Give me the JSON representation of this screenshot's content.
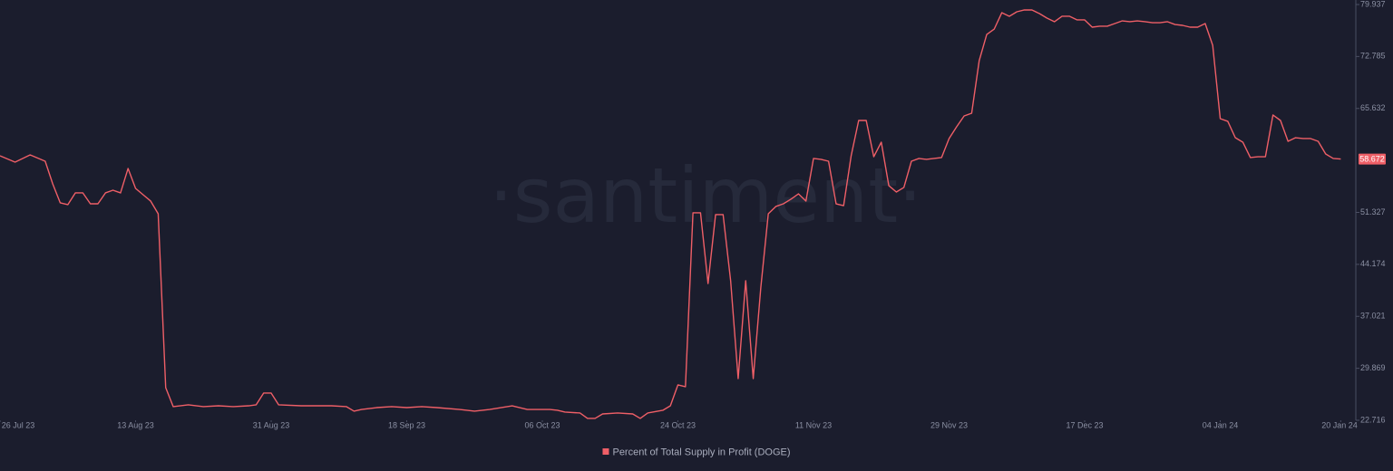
{
  "chart_data": {
    "type": "line",
    "watermark": "·santiment·",
    "x": [
      "2023-07-26",
      "2023-07-28",
      "2023-07-30",
      "2023-08-01",
      "2023-08-02",
      "2023-08-03",
      "2023-08-04",
      "2023-08-05",
      "2023-08-06",
      "2023-08-07",
      "2023-08-08",
      "2023-08-09",
      "2023-08-10",
      "2023-08-11",
      "2023-08-12",
      "2023-08-13",
      "2023-08-14",
      "2023-08-15",
      "2023-08-16",
      "2023-08-17",
      "2023-08-18",
      "2023-08-20",
      "2023-08-22",
      "2023-08-24",
      "2023-08-26",
      "2023-08-28",
      "2023-08-29",
      "2023-08-30",
      "2023-08-31",
      "2023-09-01",
      "2023-09-04",
      "2023-09-08",
      "2023-09-10",
      "2023-09-11",
      "2023-09-12",
      "2023-09-14",
      "2023-09-16",
      "2023-09-18",
      "2023-09-20",
      "2023-09-22",
      "2023-09-25",
      "2023-09-27",
      "2023-09-29",
      "2023-10-02",
      "2023-10-04",
      "2023-10-07",
      "2023-10-08",
      "2023-10-09",
      "2023-10-11",
      "2023-10-12",
      "2023-10-13",
      "2023-10-14",
      "2023-10-16",
      "2023-10-18",
      "2023-10-19",
      "2023-10-20",
      "2023-10-22",
      "2023-10-23",
      "2023-10-24",
      "2023-10-25",
      "2023-10-26",
      "2023-10-27",
      "2023-10-28",
      "2023-10-29",
      "2023-10-30",
      "2023-10-31",
      "2023-11-01",
      "2023-11-02",
      "2023-11-03",
      "2023-11-04",
      "2023-11-05",
      "2023-11-06",
      "2023-11-07",
      "2023-11-08",
      "2023-11-09",
      "2023-11-10",
      "2023-11-11",
      "2023-11-12",
      "2023-11-13",
      "2023-11-14",
      "2023-11-15",
      "2023-11-16",
      "2023-11-17",
      "2023-11-18",
      "2023-11-19",
      "2023-11-20",
      "2023-11-21",
      "2023-11-22",
      "2023-11-23",
      "2023-11-24",
      "2023-11-25",
      "2023-11-26",
      "2023-11-27",
      "2023-11-28",
      "2023-11-29",
      "2023-11-30",
      "2023-12-01",
      "2023-12-02",
      "2023-12-03",
      "2023-12-04",
      "2023-12-05",
      "2023-12-06",
      "2023-12-07",
      "2023-12-08",
      "2023-12-09",
      "2023-12-10",
      "2023-12-11",
      "2023-12-12",
      "2023-12-13",
      "2023-12-14",
      "2023-12-15",
      "2023-12-16",
      "2023-12-17",
      "2023-12-18",
      "2023-12-19",
      "2023-12-20",
      "2023-12-21",
      "2023-12-22",
      "2023-12-23",
      "2023-12-24",
      "2023-12-25",
      "2023-12-26",
      "2023-12-27",
      "2023-12-28",
      "2023-12-29",
      "2023-12-30",
      "2023-12-31",
      "2024-01-01",
      "2024-01-02",
      "2024-01-03",
      "2024-01-04",
      "2024-01-05",
      "2024-01-06",
      "2024-01-07",
      "2024-01-08",
      "2024-01-09",
      "2024-01-10",
      "2024-01-11",
      "2024-01-12",
      "2024-01-13",
      "2024-01-14",
      "2024-01-15",
      "2024-01-16",
      "2024-01-17",
      "2024-01-18",
      "2024-01-19",
      "2024-01-20"
    ],
    "series": [
      {
        "name": "Percent of Total Supply in Profit (DOGE)",
        "color": "#ef5f67",
        "values": [
          59.12,
          58.25,
          59.24,
          58.37,
          55.25,
          52.64,
          52.39,
          54.01,
          54.01,
          52.51,
          52.51,
          54.01,
          54.38,
          54.01,
          57.37,
          54.63,
          53.76,
          52.89,
          51.14,
          27.21,
          24.59,
          24.84,
          24.59,
          24.71,
          24.59,
          24.71,
          24.84,
          26.46,
          26.46,
          24.84,
          24.71,
          24.71,
          24.59,
          23.97,
          24.21,
          24.46,
          24.59,
          24.46,
          24.59,
          24.46,
          24.21,
          23.97,
          24.21,
          24.71,
          24.21,
          24.21,
          24.09,
          23.84,
          23.72,
          22.97,
          22.97,
          23.59,
          23.72,
          23.59,
          22.97,
          23.72,
          24.09,
          24.71,
          27.58,
          27.33,
          51.27,
          51.27,
          41.54,
          51.02,
          51.02,
          41.92,
          28.45,
          41.92,
          28.45,
          40.92,
          51.14,
          52.14,
          52.51,
          53.14,
          53.88,
          52.89,
          58.75,
          58.62,
          58.37,
          52.51,
          52.26,
          59.12,
          63.98,
          63.98,
          58.99,
          60.99,
          55.01,
          54.13,
          54.76,
          58.37,
          58.75,
          58.62,
          58.75,
          58.87,
          61.49,
          63.11,
          64.6,
          64.98,
          72.21,
          75.82,
          76.57,
          78.81,
          78.32,
          78.94,
          79.19,
          79.19,
          78.69,
          78.07,
          77.57,
          78.32,
          78.32,
          77.82,
          77.82,
          76.82,
          76.95,
          76.95,
          77.32,
          77.69,
          77.57,
          77.69,
          77.57,
          77.44,
          77.44,
          77.57,
          77.19,
          77.07,
          76.82,
          76.82,
          77.32,
          74.33,
          64.23,
          63.86,
          61.61,
          60.99,
          58.87,
          58.99,
          58.99,
          64.73,
          63.98,
          61.11,
          61.61,
          61.49,
          61.49,
          61.11,
          59.37,
          58.75,
          58.672
        ]
      }
    ],
    "xlim": [
      "2023-07-26",
      "2024-01-22"
    ],
    "xticks": [
      {
        "value": "2023-07-26",
        "label": "26 Jul 23"
      },
      {
        "value": "2023-08-13",
        "label": "13 Aug 23"
      },
      {
        "value": "2023-08-31",
        "label": "31 Aug 23"
      },
      {
        "value": "2023-09-18",
        "label": "18 Sep 23"
      },
      {
        "value": "2023-10-06",
        "label": "06 Oct 23"
      },
      {
        "value": "2023-10-24",
        "label": "24 Oct 23"
      },
      {
        "value": "2023-11-11",
        "label": "11 Nov 23"
      },
      {
        "value": "2023-11-29",
        "label": "29 Nov 23"
      },
      {
        "value": "2023-12-17",
        "label": "17 Dec 23"
      },
      {
        "value": "2024-01-04",
        "label": "04 Jan 24"
      },
      {
        "value": "2024-01-20",
        "label": "20 Jan 24"
      }
    ],
    "ylim": [
      22.716,
      79.937
    ],
    "yticks": [
      22.716,
      29.869,
      37.021,
      44.174,
      51.327,
      65.632,
      72.785,
      79.937
    ],
    "grid": false,
    "legend": "bottom"
  }
}
